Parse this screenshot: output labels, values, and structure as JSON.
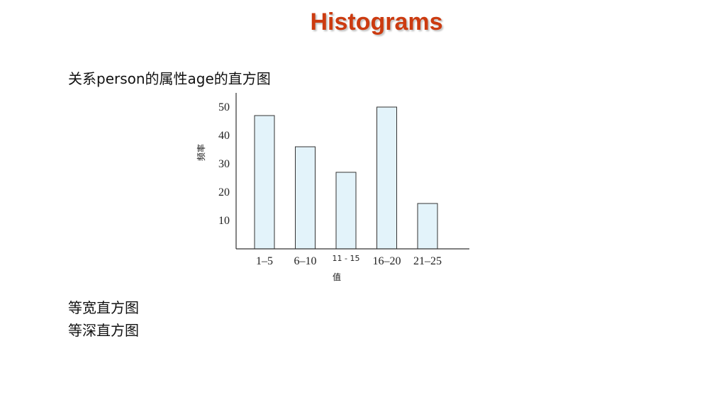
{
  "slide": {
    "title": "Histograms",
    "subtitle": "关系person的属性age的直方图",
    "bullets": [
      "等宽直方图",
      "等深直方图"
    ]
  },
  "colors": {
    "title": "#cc3b10",
    "bar_fill": "#e3f3fa",
    "bar_stroke": "#333333"
  },
  "chart_data": {
    "type": "bar",
    "title": "",
    "xlabel": "值",
    "ylabel": "频率",
    "categories": [
      "1–5",
      "6–10",
      "11 - 15",
      "16–20",
      "21–25"
    ],
    "values": [
      47,
      36,
      27,
      50,
      16
    ],
    "yticks": [
      "10",
      "20",
      "30",
      "40",
      "50"
    ],
    "ylim": [
      0,
      55
    ],
    "grid": false
  }
}
